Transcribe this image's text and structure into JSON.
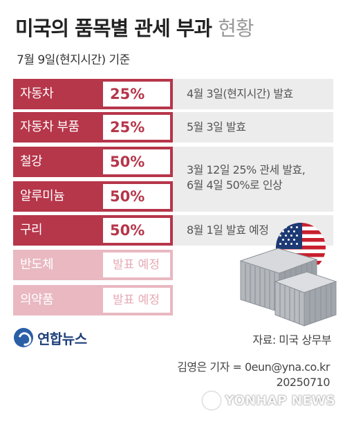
{
  "title": {
    "main": "미국의 품목별 관세 부과",
    "suffix": "현황"
  },
  "date_label": "7월 9일(현지시간) 기준",
  "tariffs": [
    {
      "category": "자동차",
      "rate": "25%",
      "status": "active"
    },
    {
      "category": "자동차 부품",
      "rate": "25%",
      "status": "active"
    },
    {
      "category": "철강",
      "rate": "50%",
      "status": "active"
    },
    {
      "category": "알루미늄",
      "rate": "50%",
      "status": "active"
    },
    {
      "category": "구리",
      "rate": "50%",
      "status": "active"
    },
    {
      "category": "반도체",
      "rate": "발표 예정",
      "status": "pending"
    },
    {
      "category": "의약품",
      "rate": "발표 예정",
      "status": "pending"
    }
  ],
  "notes": {
    "auto": "4월 3일(현지시간) 발효",
    "parts": "5월 3일 발효",
    "metals_line1": "3월 12일 25% 관세 발효,",
    "metals_line2": "6월 4일 50%로 인상",
    "copper": "8월 1일 발효 예정"
  },
  "logo": {
    "text": "연합뉴스"
  },
  "source": "자료: 미국 상무부",
  "credit": {
    "line1": "김영은 기자 = 0eun@yna.co.kr",
    "line2": "20250710"
  },
  "watermark": "YONHAP NEWS",
  "colors": {
    "accent": "#b6364a",
    "pending": "#e9b8c1",
    "note_bg": "#ececec",
    "flag_red": "#c8202f",
    "flag_blue": "#1d3a74",
    "container_gray": "#a9adb3"
  },
  "icons": [
    "us-flag-icon",
    "shipping-container-icon",
    "yonhap-logo-icon"
  ]
}
